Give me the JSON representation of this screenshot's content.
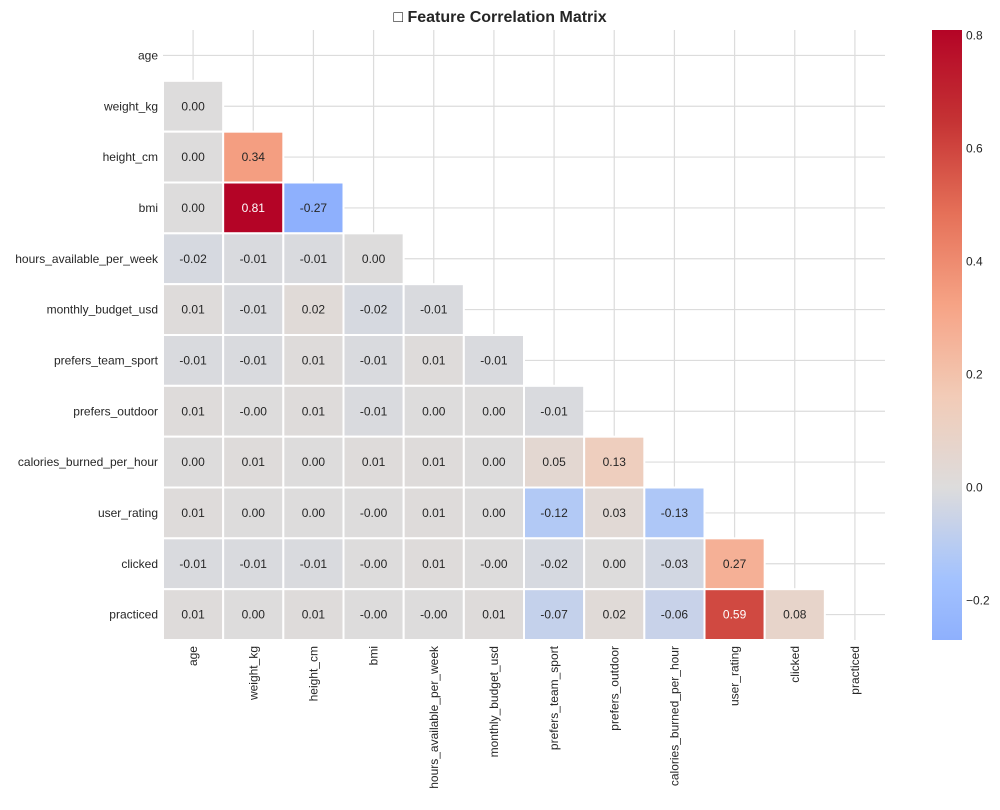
{
  "chart_data": {
    "type": "heatmap",
    "title": "□ Feature Correlation Matrix",
    "labels": [
      "age",
      "weight_kg",
      "height_cm",
      "bmi",
      "hours_available_per_week",
      "monthly_budget_usd",
      "prefers_team_sport",
      "prefers_outdoor",
      "calories_burned_per_hour",
      "user_rating",
      "clicked",
      "practiced"
    ],
    "mask": "upper triangle including diagonal",
    "values": [
      [],
      [
        "0.00"
      ],
      [
        "0.00",
        "0.34"
      ],
      [
        "0.00",
        "0.81",
        "-0.27"
      ],
      [
        "-0.02",
        "-0.01",
        "-0.01",
        "0.00"
      ],
      [
        "0.01",
        "-0.01",
        "0.02",
        "-0.02",
        "-0.01"
      ],
      [
        "-0.01",
        "-0.01",
        "0.01",
        "-0.01",
        "0.01",
        "-0.01"
      ],
      [
        "0.01",
        "-0.00",
        "0.01",
        "-0.01",
        "0.00",
        "0.00",
        "-0.01"
      ],
      [
        "0.00",
        "0.01",
        "0.00",
        "0.01",
        "0.01",
        "0.00",
        "0.05",
        "0.13"
      ],
      [
        "0.01",
        "0.00",
        "0.00",
        "-0.00",
        "0.01",
        "0.00",
        "-0.12",
        "0.03",
        "-0.13"
      ],
      [
        "-0.01",
        "-0.01",
        "-0.01",
        "-0.00",
        "0.01",
        "-0.00",
        "-0.02",
        "0.00",
        "-0.03",
        "0.27"
      ],
      [
        "0.01",
        "0.00",
        "0.01",
        "-0.00",
        "-0.00",
        "0.01",
        "-0.07",
        "0.02",
        "-0.06",
        "0.59",
        "0.08"
      ]
    ],
    "colormap": "coolwarm",
    "center": 0,
    "vmin": -0.27,
    "vmax": 0.81,
    "colorbar_ticks": [
      "−0.2",
      "0.0",
      "0.2",
      "0.4",
      "0.6",
      "0.8"
    ],
    "colorbar_tick_values": [
      -0.2,
      0.0,
      0.2,
      0.4,
      0.6,
      0.8
    ],
    "grid": true
  }
}
